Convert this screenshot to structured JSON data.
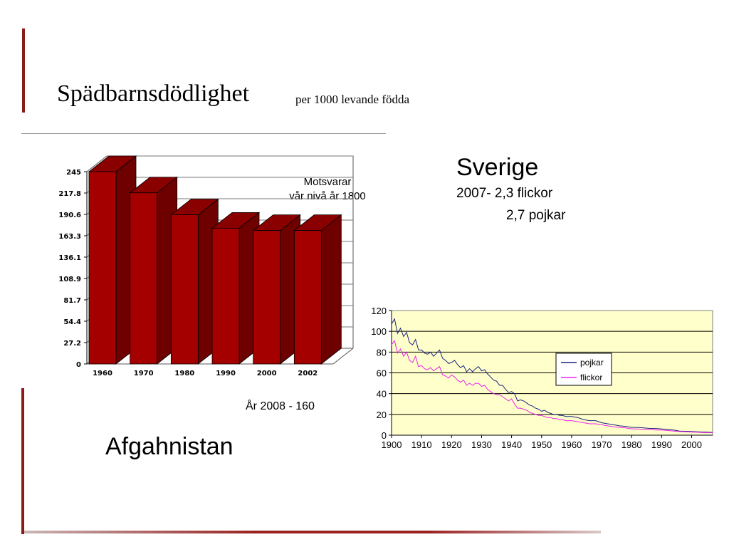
{
  "slide": {
    "title": "Spädbarnsdödlighet",
    "subtitle": "per 1000 levande födda",
    "note_lines": [
      "Motsvarar",
      "vår nivå år 1800"
    ],
    "year_2008": "År 2008 - 160",
    "country_afg": "Afgahnistan",
    "country_swe": "Sverige",
    "swe_line1": "2007- 2,3 flickor",
    "swe_line2": "2,7 pojkar"
  },
  "colors": {
    "bar_front": "#a50000",
    "bar_side": "#6e0000",
    "bar_top": "#8a0000",
    "plot_bg": "#ffffcc",
    "pojkar": "#1a237e",
    "flickor": "#ee22ee"
  },
  "chart_data": [
    {
      "type": "bar",
      "style": "3d",
      "categories": [
        "1960",
        "1970",
        "1980",
        "1990",
        "2000",
        "2002"
      ],
      "values": [
        245,
        218,
        190,
        173,
        170,
        170
      ],
      "yticks": [
        "0",
        "27.2",
        "54.4",
        "81.7",
        "108.9",
        "136.1",
        "163.3",
        "190.6",
        "217.8",
        "245"
      ],
      "ylim": [
        0,
        245
      ],
      "grid": true
    },
    {
      "type": "line",
      "xticks": [
        "1900",
        "1910",
        "1920",
        "1930",
        "1940",
        "1950",
        "1960",
        "1970",
        "1980",
        "1990",
        "2000"
      ],
      "yticks": [
        "0",
        "20",
        "40",
        "60",
        "80",
        "100",
        "120"
      ],
      "xlim": [
        1900,
        2007
      ],
      "ylim": [
        0,
        120
      ],
      "grid": true,
      "legend_position": "right",
      "series": [
        {
          "name": "pojkar",
          "color": "#1a237e",
          "points": [
            [
              1900,
              107
            ],
            [
              1901,
              112
            ],
            [
              1902,
              98
            ],
            [
              1903,
              103
            ],
            [
              1904,
              95
            ],
            [
              1905,
              99
            ],
            [
              1906,
              89
            ],
            [
              1907,
              87
            ],
            [
              1908,
              92
            ],
            [
              1909,
              82
            ],
            [
              1910,
              82
            ],
            [
              1911,
              79
            ],
            [
              1912,
              78
            ],
            [
              1913,
              80
            ],
            [
              1914,
              76
            ],
            [
              1915,
              79
            ],
            [
              1916,
              82
            ],
            [
              1917,
              74
            ],
            [
              1918,
              72
            ],
            [
              1919,
              69
            ],
            [
              1920,
              70
            ],
            [
              1921,
              72
            ],
            [
              1922,
              68
            ],
            [
              1923,
              65
            ],
            [
              1924,
              67
            ],
            [
              1925,
              61
            ],
            [
              1926,
              64
            ],
            [
              1927,
              61
            ],
            [
              1928,
              64
            ],
            [
              1929,
              66
            ],
            [
              1930,
              62
            ],
            [
              1931,
              63
            ],
            [
              1932,
              59
            ],
            [
              1933,
              56
            ],
            [
              1934,
              53
            ],
            [
              1935,
              52
            ],
            [
              1936,
              48
            ],
            [
              1937,
              48
            ],
            [
              1938,
              44
            ],
            [
              1939,
              41
            ],
            [
              1940,
              42
            ],
            [
              1941,
              40
            ],
            [
              1942,
              33
            ],
            [
              1943,
              34
            ],
            [
              1944,
              33
            ],
            [
              1945,
              31
            ],
            [
              1946,
              29
            ],
            [
              1947,
              28
            ],
            [
              1948,
              26
            ],
            [
              1949,
              25
            ],
            [
              1950,
              23
            ],
            [
              1951,
              24
            ],
            [
              1952,
              22
            ],
            [
              1953,
              21
            ],
            [
              1954,
              20
            ],
            [
              1955,
              20
            ],
            [
              1956,
              19
            ],
            [
              1957,
              19
            ],
            [
              1958,
              18
            ],
            [
              1959,
              18
            ],
            [
              1960,
              18
            ],
            [
              1962,
              17
            ],
            [
              1964,
              15
            ],
            [
              1966,
              14
            ],
            [
              1968,
              14
            ],
            [
              1970,
              12
            ],
            [
              1972,
              11
            ],
            [
              1974,
              10
            ],
            [
              1976,
              9
            ],
            [
              1978,
              8.5
            ],
            [
              1980,
              7.5
            ],
            [
              1982,
              7.5
            ],
            [
              1984,
              7
            ],
            [
              1986,
              6.5
            ],
            [
              1988,
              6.5
            ],
            [
              1990,
              6
            ],
            [
              1992,
              5.5
            ],
            [
              1994,
              5
            ],
            [
              1996,
              4
            ],
            [
              1998,
              3.8
            ],
            [
              2000,
              3.5
            ],
            [
              2002,
              3.2
            ],
            [
              2004,
              3
            ],
            [
              2006,
              2.8
            ],
            [
              2007,
              2.7
            ]
          ]
        },
        {
          "name": "flickor",
          "color": "#ee22ee",
          "points": [
            [
              1900,
              87
            ],
            [
              1901,
              91
            ],
            [
              1902,
              79
            ],
            [
              1903,
              83
            ],
            [
              1904,
              76
            ],
            [
              1905,
              80
            ],
            [
              1906,
              72
            ],
            [
              1907,
              70
            ],
            [
              1908,
              76
            ],
            [
              1909,
              66
            ],
            [
              1910,
              67
            ],
            [
              1911,
              64
            ],
            [
              1912,
              63
            ],
            [
              1913,
              65
            ],
            [
              1914,
              62
            ],
            [
              1915,
              64
            ],
            [
              1916,
              66
            ],
            [
              1917,
              58
            ],
            [
              1918,
              57
            ],
            [
              1919,
              55
            ],
            [
              1920,
              58
            ],
            [
              1921,
              56
            ],
            [
              1922,
              53
            ],
            [
              1923,
              51
            ],
            [
              1924,
              53
            ],
            [
              1925,
              48
            ],
            [
              1926,
              50
            ],
            [
              1927,
              48
            ],
            [
              1928,
              50
            ],
            [
              1929,
              50
            ],
            [
              1930,
              47
            ],
            [
              1931,
              48
            ],
            [
              1932,
              44
            ],
            [
              1933,
              42
            ],
            [
              1934,
              40
            ],
            [
              1935,
              39
            ],
            [
              1936,
              39
            ],
            [
              1937,
              37
            ],
            [
              1938,
              35
            ],
            [
              1939,
              33
            ],
            [
              1940,
              35
            ],
            [
              1941,
              30
            ],
            [
              1942,
              26
            ],
            [
              1943,
              26
            ],
            [
              1944,
              25
            ],
            [
              1945,
              24
            ],
            [
              1946,
              22
            ],
            [
              1947,
              21
            ],
            [
              1948,
              20
            ],
            [
              1949,
              19
            ],
            [
              1950,
              19
            ],
            [
              1951,
              18
            ],
            [
              1952,
              17
            ],
            [
              1953,
              17
            ],
            [
              1954,
              16
            ],
            [
              1955,
              16
            ],
            [
              1956,
              15
            ],
            [
              1957,
              15
            ],
            [
              1958,
              14
            ],
            [
              1959,
              14
            ],
            [
              1960,
              14
            ],
            [
              1962,
              13
            ],
            [
              1964,
              12
            ],
            [
              1966,
              11
            ],
            [
              1968,
              11
            ],
            [
              1970,
              10
            ],
            [
              1972,
              9
            ],
            [
              1974,
              8
            ],
            [
              1976,
              7.5
            ],
            [
              1978,
              7
            ],
            [
              1980,
              6
            ],
            [
              1982,
              6
            ],
            [
              1984,
              5.5
            ],
            [
              1986,
              5.5
            ],
            [
              1988,
              5
            ],
            [
              1990,
              5
            ],
            [
              1992,
              4.5
            ],
            [
              1994,
              4
            ],
            [
              1996,
              3.5
            ],
            [
              1998,
              3.2
            ],
            [
              2000,
              3
            ],
            [
              2002,
              2.8
            ],
            [
              2004,
              2.5
            ],
            [
              2006,
              2.4
            ],
            [
              2007,
              2.3
            ]
          ]
        }
      ]
    }
  ]
}
